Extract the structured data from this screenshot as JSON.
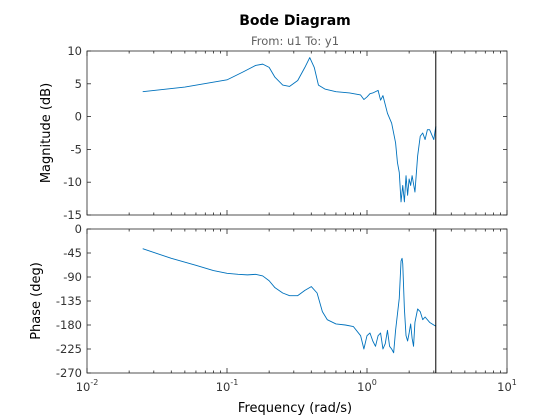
{
  "chart_data": {
    "type": "line",
    "title": "Bode Diagram",
    "subtitle": "From: u1  To: y1",
    "xlabel": "Frequency  (rad/s)",
    "x_scale": "log",
    "xlim": [
      0.01,
      10
    ],
    "x_ticks": [
      {
        "value": 0.01,
        "base": "10",
        "exp": "-2"
      },
      {
        "value": 0.1,
        "base": "10",
        "exp": "-1"
      },
      {
        "value": 1,
        "base": "10",
        "exp": "0"
      },
      {
        "value": 10,
        "base": "10",
        "exp": "1"
      }
    ],
    "grid": false,
    "line_color": "#0072bd",
    "marker_frequency": 3.1,
    "panels": [
      {
        "ylabel": "Magnitude (dB)",
        "ylim": [
          -15,
          10
        ],
        "y_ticks": [
          10,
          5,
          0,
          -5,
          -10,
          -15
        ],
        "series": [
          {
            "x": [
              0.025,
              0.05,
              0.1,
              0.13,
              0.16,
              0.18,
              0.2,
              0.22,
              0.25,
              0.28,
              0.32,
              0.36,
              0.39,
              0.42,
              0.45,
              0.5,
              0.6,
              0.75,
              0.9,
              0.95,
              1.0,
              1.05,
              1.1,
              1.2,
              1.25,
              1.3,
              1.4,
              1.5,
              1.6,
              1.65,
              1.7,
              1.75,
              1.8,
              1.85,
              1.9,
              1.95,
              2.0,
              2.05,
              2.1,
              2.2,
              2.3,
              2.4,
              2.5,
              2.6,
              2.7,
              2.8,
              3.0,
              3.1
            ],
            "y": [
              3.8,
              4.5,
              5.6,
              6.8,
              7.8,
              8.0,
              7.5,
              6.0,
              4.8,
              4.6,
              5.5,
              7.5,
              9.0,
              7.5,
              4.8,
              4.2,
              3.8,
              3.6,
              3.3,
              2.6,
              3.0,
              3.5,
              3.6,
              4.0,
              2.5,
              3.2,
              0.5,
              -1.0,
              -4.0,
              -7.0,
              -8.5,
              -13.0,
              -10.5,
              -13.0,
              -9.0,
              -12.0,
              -9.5,
              -10.5,
              -9.0,
              -11.5,
              -6.0,
              -3.0,
              -2.5,
              -3.5,
              -2.0,
              -2.0,
              -3.5,
              -1.5
            ]
          }
        ]
      },
      {
        "ylabel": "Phase (deg)",
        "ylim": [
          -270,
          0
        ],
        "y_ticks": [
          0,
          -45,
          -90,
          -135,
          -180,
          -225,
          -270
        ],
        "series": [
          {
            "x": [
              0.025,
              0.04,
              0.06,
              0.08,
              0.1,
              0.12,
              0.14,
              0.16,
              0.18,
              0.2,
              0.22,
              0.25,
              0.28,
              0.32,
              0.36,
              0.4,
              0.44,
              0.48,
              0.52,
              0.6,
              0.7,
              0.8,
              0.9,
              0.95,
              1.0,
              1.05,
              1.1,
              1.15,
              1.2,
              1.25,
              1.3,
              1.35,
              1.4,
              1.45,
              1.5,
              1.55,
              1.6,
              1.7,
              1.75,
              1.78,
              1.8,
              1.85,
              1.9,
              1.95,
              2.0,
              2.05,
              2.1,
              2.15,
              2.2,
              2.3,
              2.4,
              2.5,
              2.6,
              2.8,
              3.0,
              3.1
            ],
            "y": [
              -37,
              -55,
              -68,
              -78,
              -83,
              -85,
              -86,
              -85,
              -88,
              -97,
              -110,
              -120,
              -125,
              -125,
              -115,
              -108,
              -120,
              -155,
              -170,
              -178,
              -180,
              -183,
              -200,
              -225,
              -200,
              -195,
              -210,
              -220,
              -200,
              -195,
              -225,
              -215,
              -190,
              -220,
              -225,
              -232,
              -190,
              -130,
              -60,
              -55,
              -65,
              -150,
              -200,
              -210,
              -195,
              -178,
              -205,
              -220,
              -175,
              -150,
              -155,
              -170,
              -165,
              -175,
              -180,
              -182
            ]
          }
        ]
      }
    ]
  }
}
